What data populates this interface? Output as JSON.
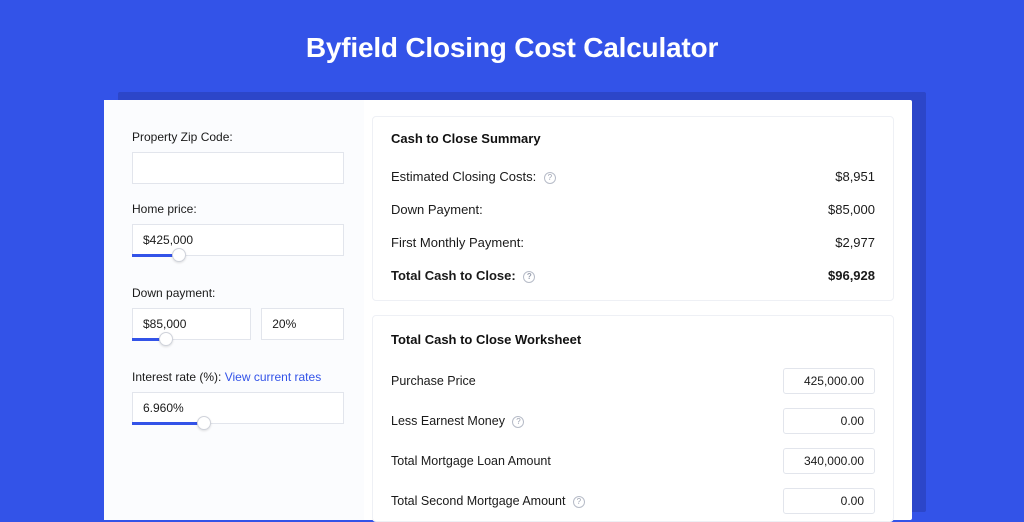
{
  "page": {
    "title": "Byfield Closing Cost Calculator",
    "background_color": "#3353e8",
    "card_shadow_color": "#2c46c9",
    "accent_color": "#3353e8"
  },
  "form": {
    "zip": {
      "label": "Property Zip Code:",
      "value": ""
    },
    "home_price": {
      "label": "Home price:",
      "value": "$425,000",
      "slider_percent": 22
    },
    "down_payment": {
      "label": "Down payment:",
      "value": "$85,000",
      "percent_value": "20%",
      "slider_percent": 26
    },
    "interest_rate": {
      "label": "Interest rate (%): ",
      "link_text": "View current rates",
      "value": "6.960%",
      "slider_percent": 34
    }
  },
  "summary": {
    "title": "Cash to Close Summary",
    "rows": [
      {
        "label": "Estimated Closing Costs:",
        "info": true,
        "value": "$8,951"
      },
      {
        "label": "Down Payment:",
        "info": false,
        "value": "$85,000"
      },
      {
        "label": "First Monthly Payment:",
        "info": false,
        "value": "$2,977"
      }
    ],
    "total": {
      "label": "Total Cash to Close:",
      "info": true,
      "value": "$96,928"
    }
  },
  "worksheet": {
    "title": "Total Cash to Close Worksheet",
    "rows": [
      {
        "label": "Purchase Price",
        "info": false,
        "value": "425,000.00"
      },
      {
        "label": "Less Earnest Money",
        "info": true,
        "value": "0.00"
      },
      {
        "label": "Total Mortgage Loan Amount",
        "info": false,
        "value": "340,000.00"
      },
      {
        "label": "Total Second Mortgage Amount",
        "info": true,
        "value": "0.00"
      }
    ]
  }
}
